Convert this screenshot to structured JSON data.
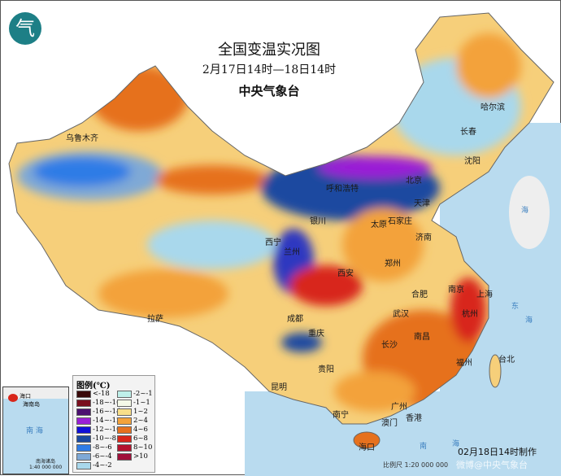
{
  "header": {
    "title": "全国变温实况图",
    "subtitle": "2月17日14时—18日14时",
    "organization": "中央气象台",
    "logo_glyph": "气"
  },
  "legend": {
    "title": "图例(℃)",
    "items": [
      {
        "label": "<-18",
        "color": "#3a0a0a"
      },
      {
        "label": "-18~-16",
        "color": "#7a0f1e"
      },
      {
        "label": "-16~-14",
        "color": "#4b1070"
      },
      {
        "label": "-14~-12",
        "color": "#9a1fd6"
      },
      {
        "label": "-12~-10",
        "color": "#1010d8"
      },
      {
        "label": "-10~-8",
        "color": "#1a4aa0"
      },
      {
        "label": "-8~-6",
        "color": "#2e7ce6"
      },
      {
        "label": "-6~-4",
        "color": "#7fa9d6"
      },
      {
        "label": "-4~-2",
        "color": "#a9d8ec"
      },
      {
        "label": "-2~-1",
        "color": "#bff0ea"
      },
      {
        "label": "-1~1",
        "color": "#f4f9e8"
      },
      {
        "label": "1~2",
        "color": "#f8df8a"
      },
      {
        "label": "2~4",
        "color": "#f3a23b"
      },
      {
        "label": "4~6",
        "color": "#e6711e"
      },
      {
        "label": "6~8",
        "color": "#d8261a"
      },
      {
        "label": "8~10",
        "color": "#b4122e"
      },
      {
        ">10": "",
        "label": ">10",
        "color": "#a0103a"
      }
    ]
  },
  "cities": [
    "哈尔滨",
    "长春",
    "沈阳",
    "乌鲁木齐",
    "呼和浩特",
    "北京",
    "天津",
    "银川",
    "太原",
    "石家庄",
    "济南",
    "西宁",
    "兰州",
    "郑州",
    "西安",
    "合肥",
    "南京",
    "上海",
    "杭州",
    "成都",
    "武汉",
    "重庆",
    "长沙",
    "南昌",
    "福州",
    "台北",
    "拉萨",
    "贵阳",
    "昆明",
    "南宁",
    "广州",
    "香港",
    "澳门",
    "海口"
  ],
  "seas": [
    "海",
    "东",
    "海",
    "南",
    "海"
  ],
  "inset": {
    "city": "海口",
    "island": "海南岛",
    "sea": "南 海",
    "islands": "南海诸岛",
    "scale": "1:40 000 000"
  },
  "footer": {
    "made": "02月18日14时制作",
    "scale": "比例尺 1:20 000 000",
    "watermark": "微博@中央气象台"
  }
}
